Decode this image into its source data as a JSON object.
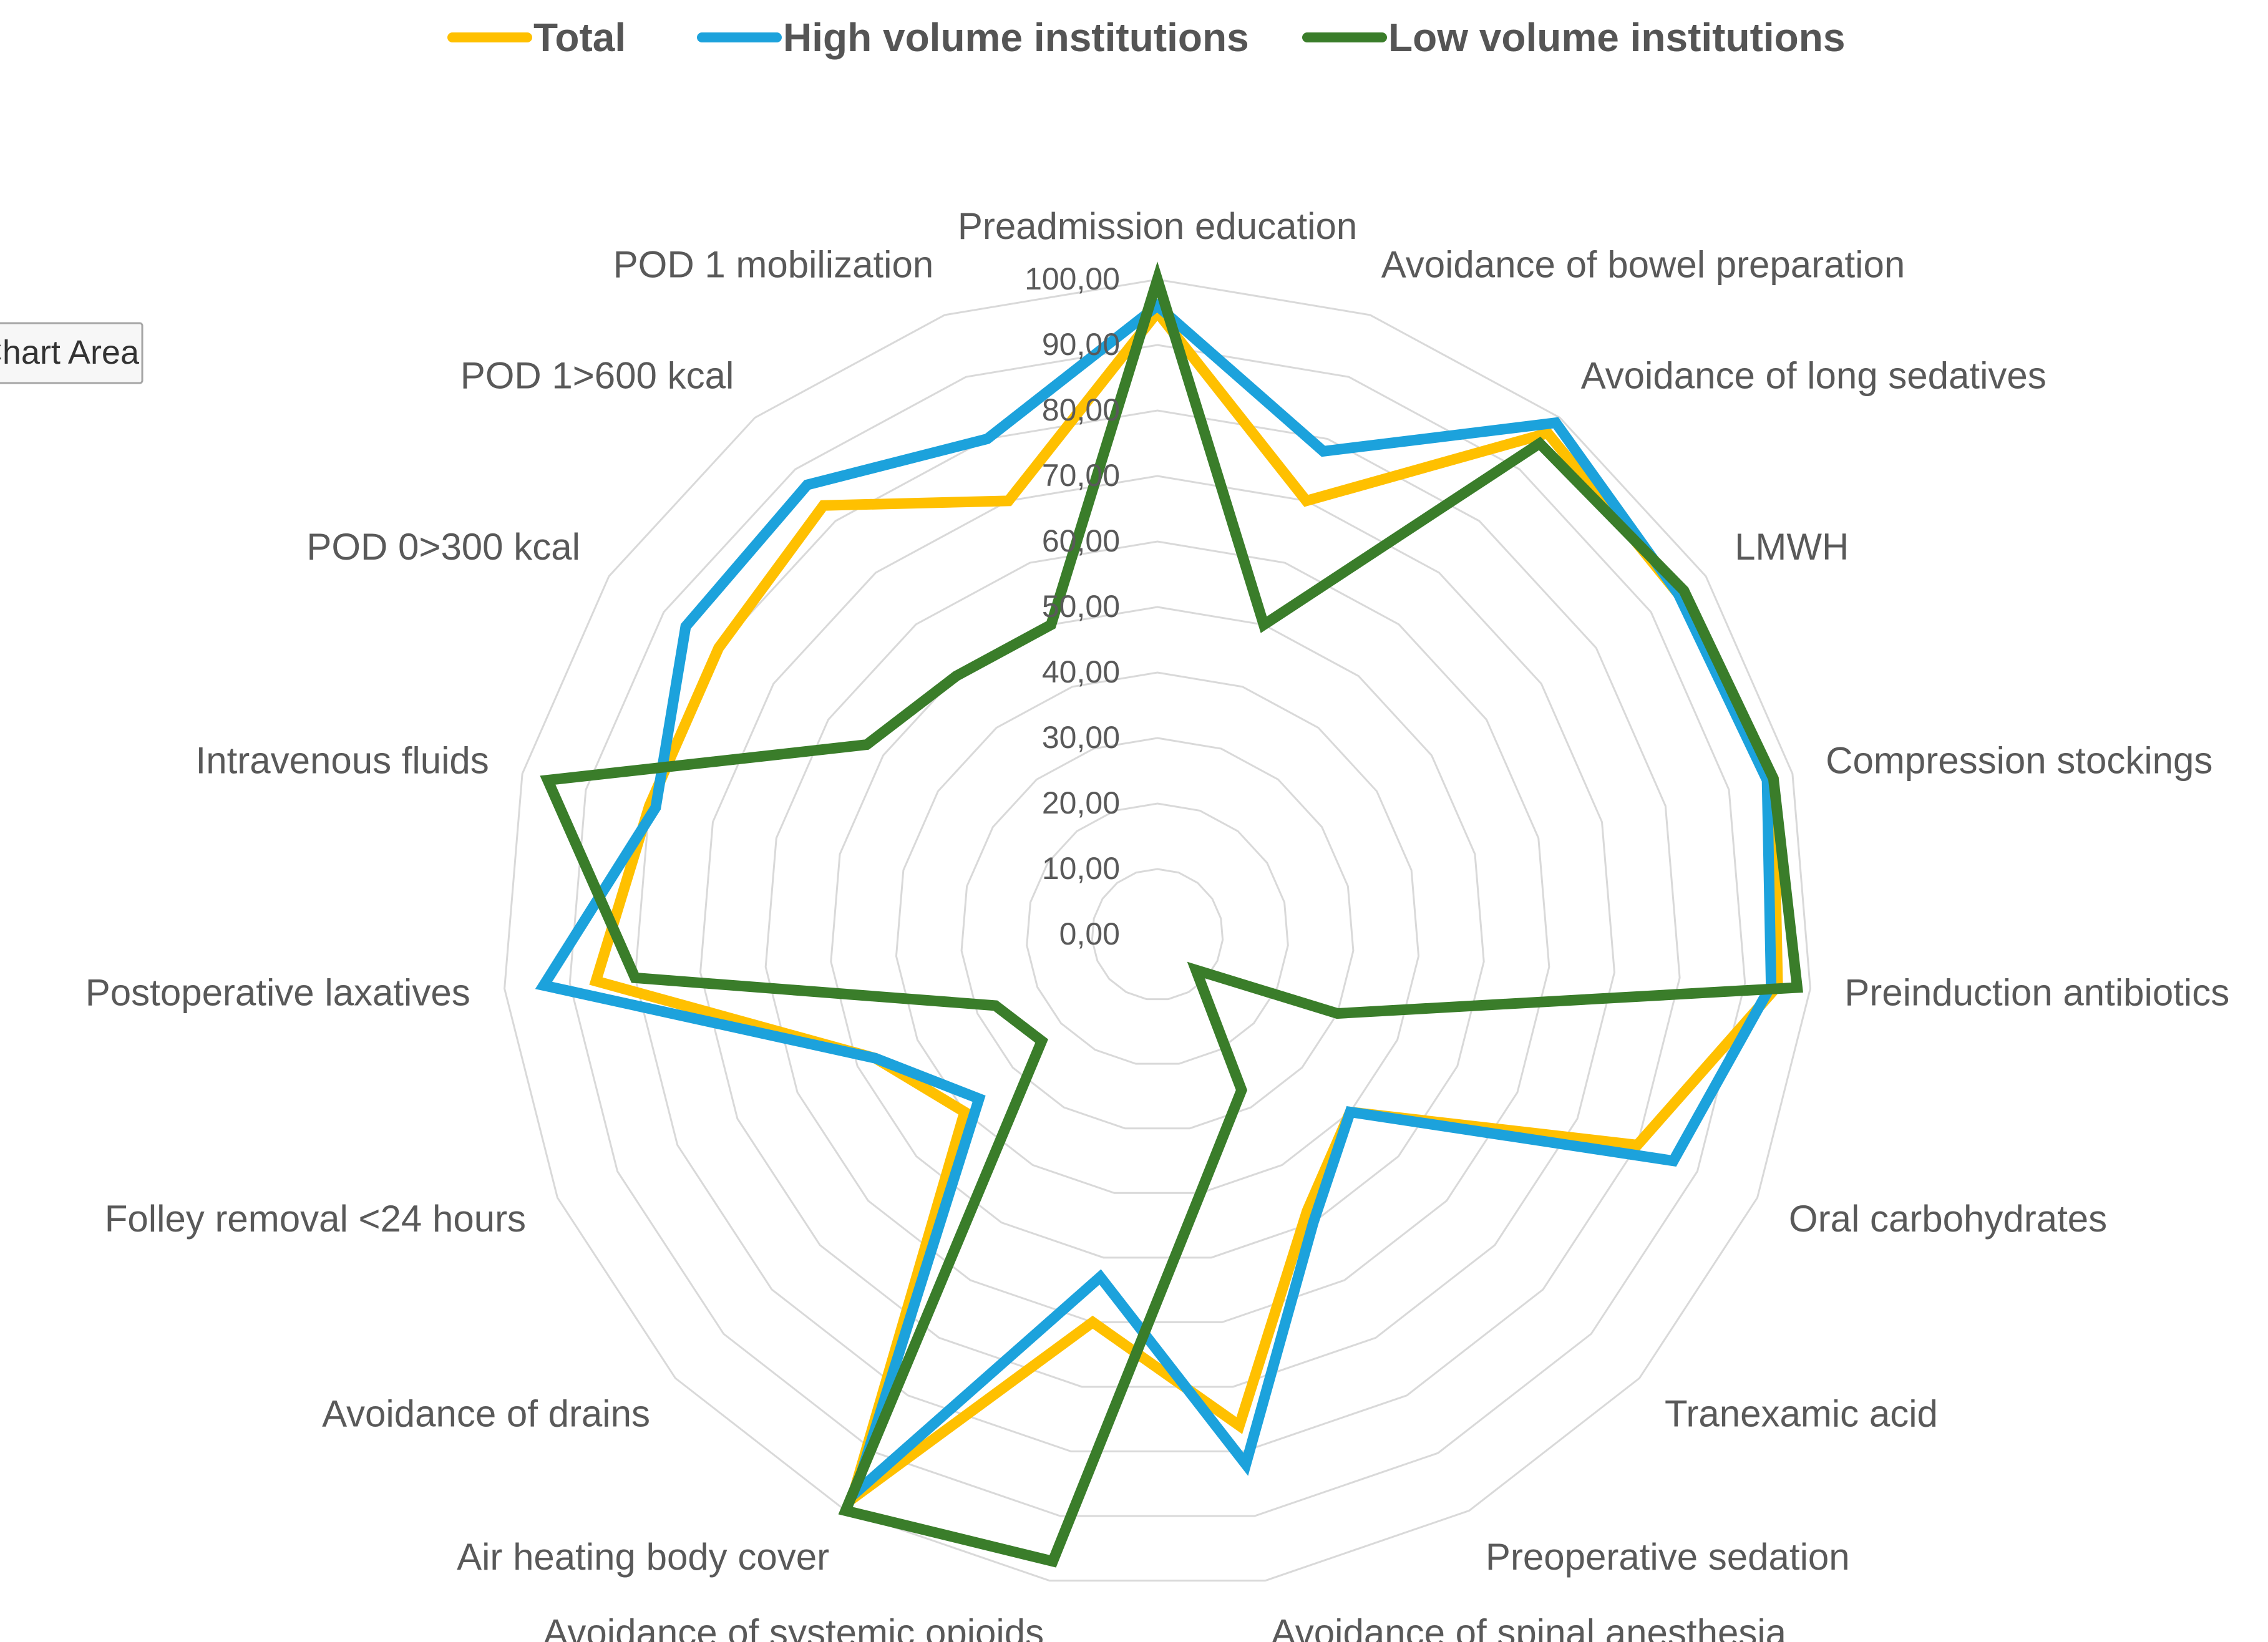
{
  "chart_data": {
    "type": "radar",
    "legend_position": "top",
    "grid": true,
    "rlim": [
      0,
      100
    ],
    "ticks": [
      "0,00",
      "10,00",
      "20,00",
      "30,00",
      "40,00",
      "50,00",
      "60,00",
      "70,00",
      "80,00",
      "90,00",
      "100,00"
    ],
    "categories": [
      "Preadmission education",
      "Avoidance of bowel preparation",
      "Avoidance of long sedatives",
      "LMWH",
      "Compression stockings",
      "Preinduction antibiotics",
      "Oral carbohydrates",
      "Tranexamic acid",
      "Preoperative sedation",
      "Avoidance of spinal anesthesia",
      "Avoidance of systemic opioids",
      "Air heating body cover",
      "Avoidance of drains",
      "Folley removal <24 hours",
      "Postoperative laxatives",
      "Intravenous fluids",
      "POD 0>300 kcal",
      "POD 1>600 kcal",
      "POD 1 mobilization"
    ],
    "series": [
      {
        "name": "Total",
        "color": "#FFC000",
        "values": [
          95,
          70,
          97,
          95,
          97,
          95,
          80,
          40,
          48,
          76,
          60,
          98,
          40,
          47,
          86,
          80,
          80,
          83,
          70
        ]
      },
      {
        "name": "High volume institutions",
        "color": "#1CA2DC",
        "values": [
          96,
          78,
          99,
          95,
          96,
          94,
          86,
          40,
          50,
          82,
          53,
          97,
          37,
          47,
          94,
          79,
          86,
          87,
          80
        ]
      },
      {
        "name": "Low volume institutions",
        "color": "#3A7D2A",
        "values": [
          100,
          50,
          95,
          96,
          97,
          98,
          30,
          8,
          27,
          40,
          97,
          100,
          24,
          27,
          80,
          96,
          53,
          50,
          50
        ]
      }
    ]
  },
  "tooltip": {
    "label": "Chart Area"
  }
}
